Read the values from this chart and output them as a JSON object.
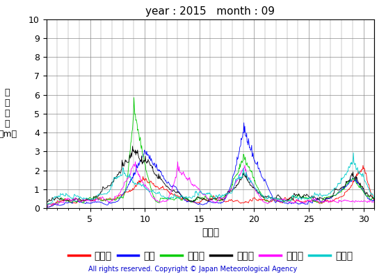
{
  "title": "year : 2015   month : 09",
  "ylabel_chars": "有\n義\n波\n高\n（m）",
  "xlabel": "（日）",
  "copyright": "All rights reserved. Copyright © Japan Meteorological Agency",
  "ylim": [
    0,
    10
  ],
  "xlim": [
    1,
    31
  ],
  "xticks": [
    5,
    10,
    15,
    20,
    25,
    30
  ],
  "yticks": [
    0,
    1,
    2,
    3,
    4,
    5,
    6,
    7,
    8,
    9,
    10
  ],
  "series": [
    {
      "name": "上ノ国",
      "color": "#FF0000"
    },
    {
      "name": "唐桜",
      "color": "#0000FF"
    },
    {
      "name": "石廈崎",
      "color": "#00CC00"
    },
    {
      "name": "経ヶ尌",
      "color": "#000000"
    },
    {
      "name": "生月島",
      "color": "#FF00FF"
    },
    {
      "name": "屋久島",
      "color": "#00CCCC"
    }
  ],
  "copyright_color": "#0000CC",
  "background_color": "#FFFFFF",
  "grid_color": "#888888"
}
